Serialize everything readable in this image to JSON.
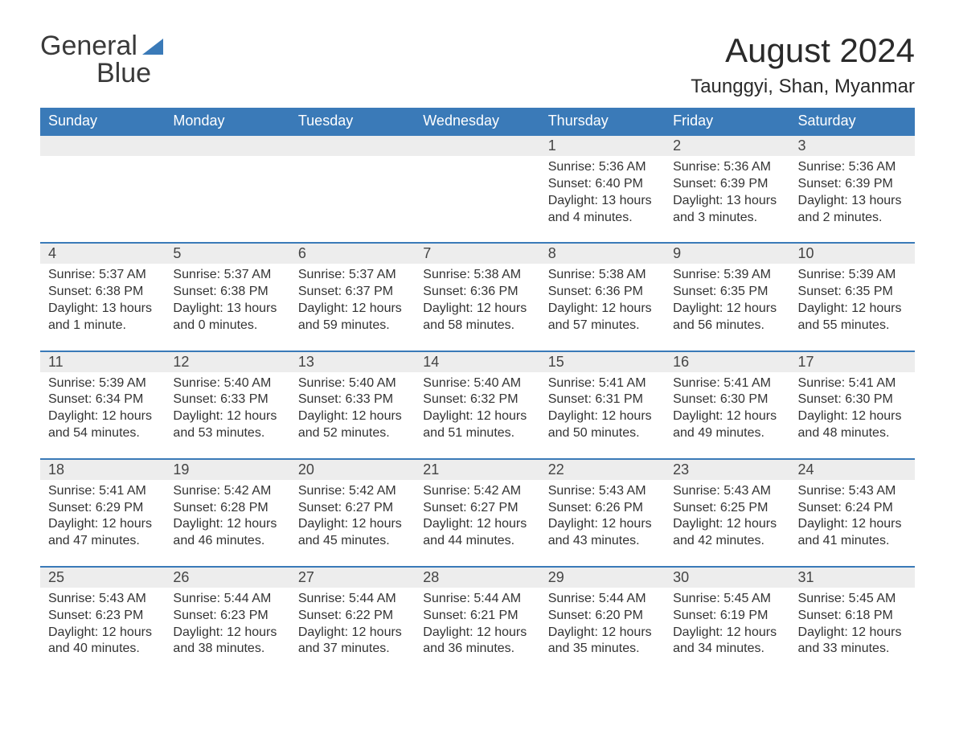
{
  "logo": {
    "word1": "General",
    "word2": "Blue"
  },
  "title": "August 2024",
  "location": "Taunggyi, Shan, Myanmar",
  "colors": {
    "header_bg": "#3a7ab8",
    "header_text": "#ffffff",
    "daynum_bg": "#ededed",
    "daynum_border": "#3a7ab8",
    "body_text": "#333333",
    "page_bg": "#ffffff",
    "logo_blue": "#3a7ab8"
  },
  "typography": {
    "title_fontsize": 42,
    "subtitle_fontsize": 24,
    "header_fontsize": 18,
    "daynum_fontsize": 18,
    "cell_fontsize": 16,
    "font_family": "Arial"
  },
  "layout": {
    "columns": 7,
    "rows": 5,
    "start_day_index": 4
  },
  "weekdays": [
    "Sunday",
    "Monday",
    "Tuesday",
    "Wednesday",
    "Thursday",
    "Friday",
    "Saturday"
  ],
  "days": [
    {
      "n": 1,
      "sunrise": "5:36 AM",
      "sunset": "6:40 PM",
      "dl": "13 hours and 4 minutes."
    },
    {
      "n": 2,
      "sunrise": "5:36 AM",
      "sunset": "6:39 PM",
      "dl": "13 hours and 3 minutes."
    },
    {
      "n": 3,
      "sunrise": "5:36 AM",
      "sunset": "6:39 PM",
      "dl": "13 hours and 2 minutes."
    },
    {
      "n": 4,
      "sunrise": "5:37 AM",
      "sunset": "6:38 PM",
      "dl": "13 hours and 1 minute."
    },
    {
      "n": 5,
      "sunrise": "5:37 AM",
      "sunset": "6:38 PM",
      "dl": "13 hours and 0 minutes."
    },
    {
      "n": 6,
      "sunrise": "5:37 AM",
      "sunset": "6:37 PM",
      "dl": "12 hours and 59 minutes."
    },
    {
      "n": 7,
      "sunrise": "5:38 AM",
      "sunset": "6:36 PM",
      "dl": "12 hours and 58 minutes."
    },
    {
      "n": 8,
      "sunrise": "5:38 AM",
      "sunset": "6:36 PM",
      "dl": "12 hours and 57 minutes."
    },
    {
      "n": 9,
      "sunrise": "5:39 AM",
      "sunset": "6:35 PM",
      "dl": "12 hours and 56 minutes."
    },
    {
      "n": 10,
      "sunrise": "5:39 AM",
      "sunset": "6:35 PM",
      "dl": "12 hours and 55 minutes."
    },
    {
      "n": 11,
      "sunrise": "5:39 AM",
      "sunset": "6:34 PM",
      "dl": "12 hours and 54 minutes."
    },
    {
      "n": 12,
      "sunrise": "5:40 AM",
      "sunset": "6:33 PM",
      "dl": "12 hours and 53 minutes."
    },
    {
      "n": 13,
      "sunrise": "5:40 AM",
      "sunset": "6:33 PM",
      "dl": "12 hours and 52 minutes."
    },
    {
      "n": 14,
      "sunrise": "5:40 AM",
      "sunset": "6:32 PM",
      "dl": "12 hours and 51 minutes."
    },
    {
      "n": 15,
      "sunrise": "5:41 AM",
      "sunset": "6:31 PM",
      "dl": "12 hours and 50 minutes."
    },
    {
      "n": 16,
      "sunrise": "5:41 AM",
      "sunset": "6:30 PM",
      "dl": "12 hours and 49 minutes."
    },
    {
      "n": 17,
      "sunrise": "5:41 AM",
      "sunset": "6:30 PM",
      "dl": "12 hours and 48 minutes."
    },
    {
      "n": 18,
      "sunrise": "5:41 AM",
      "sunset": "6:29 PM",
      "dl": "12 hours and 47 minutes."
    },
    {
      "n": 19,
      "sunrise": "5:42 AM",
      "sunset": "6:28 PM",
      "dl": "12 hours and 46 minutes."
    },
    {
      "n": 20,
      "sunrise": "5:42 AM",
      "sunset": "6:27 PM",
      "dl": "12 hours and 45 minutes."
    },
    {
      "n": 21,
      "sunrise": "5:42 AM",
      "sunset": "6:27 PM",
      "dl": "12 hours and 44 minutes."
    },
    {
      "n": 22,
      "sunrise": "5:43 AM",
      "sunset": "6:26 PM",
      "dl": "12 hours and 43 minutes."
    },
    {
      "n": 23,
      "sunrise": "5:43 AM",
      "sunset": "6:25 PM",
      "dl": "12 hours and 42 minutes."
    },
    {
      "n": 24,
      "sunrise": "5:43 AM",
      "sunset": "6:24 PM",
      "dl": "12 hours and 41 minutes."
    },
    {
      "n": 25,
      "sunrise": "5:43 AM",
      "sunset": "6:23 PM",
      "dl": "12 hours and 40 minutes."
    },
    {
      "n": 26,
      "sunrise": "5:44 AM",
      "sunset": "6:23 PM",
      "dl": "12 hours and 38 minutes."
    },
    {
      "n": 27,
      "sunrise": "5:44 AM",
      "sunset": "6:22 PM",
      "dl": "12 hours and 37 minutes."
    },
    {
      "n": 28,
      "sunrise": "5:44 AM",
      "sunset": "6:21 PM",
      "dl": "12 hours and 36 minutes."
    },
    {
      "n": 29,
      "sunrise": "5:44 AM",
      "sunset": "6:20 PM",
      "dl": "12 hours and 35 minutes."
    },
    {
      "n": 30,
      "sunrise": "5:45 AM",
      "sunset": "6:19 PM",
      "dl": "12 hours and 34 minutes."
    },
    {
      "n": 31,
      "sunrise": "5:45 AM",
      "sunset": "6:18 PM",
      "dl": "12 hours and 33 minutes."
    }
  ],
  "labels": {
    "sunrise": "Sunrise:",
    "sunset": "Sunset:",
    "daylight": "Daylight:"
  }
}
